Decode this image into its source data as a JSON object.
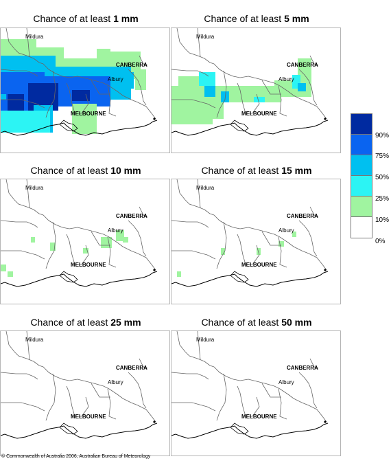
{
  "title_prefix": "Chance of at least ",
  "panels": [
    {
      "amount": "1 mm"
    },
    {
      "amount": "5 mm"
    },
    {
      "amount": "10 mm"
    },
    {
      "amount": "15 mm"
    },
    {
      "amount": "25 mm"
    },
    {
      "amount": "50 mm"
    }
  ],
  "place_labels": {
    "mildura": "Mildura",
    "canberra": "CANBERRA",
    "albury": "Albury",
    "melbourne": "MELBOURNE"
  },
  "legend": {
    "labels": [
      "90%",
      "75%",
      "50%",
      "25%",
      "10%",
      "0%"
    ],
    "colors": [
      "#002aa0",
      "#0a64f0",
      "#00c0f0",
      "#2cf4f4",
      "#a0f4a0",
      "#ffffff"
    ]
  },
  "copyright": "© Commonwealth of Australia 2006, Australian Bureau of Meteorology"
}
